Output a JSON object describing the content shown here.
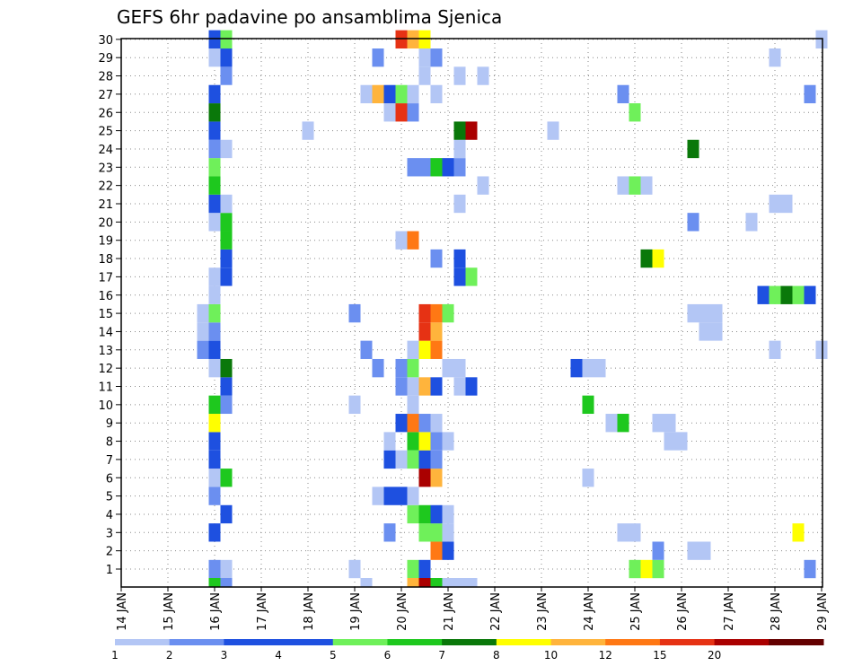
{
  "chart_data": {
    "type": "heatmap",
    "title": "GEFS 6hr padavine po ansamblima Sjenica",
    "y_categories": [
      "1",
      "2",
      "3",
      "4",
      "5",
      "6",
      "7",
      "8",
      "9",
      "10",
      "11",
      "12",
      "13",
      "14",
      "15",
      "16",
      "17",
      "18",
      "19",
      "20",
      "21",
      "22",
      "23",
      "24",
      "25",
      "26",
      "27",
      "28",
      "29",
      "30"
    ],
    "x_tick_labels": [
      "14 JAN",
      "15 JAN",
      "16 JAN",
      "17 JAN",
      "18 JAN",
      "19 JAN",
      "20 JAN",
      "21 JAN",
      "22 JAN",
      "23 JAN",
      "24 JAN",
      "25 JAN",
      "26 JAN",
      "27 JAN",
      "28 JAN",
      "29 JAN"
    ],
    "time_step_hours": 6,
    "legend": {
      "labels": [
        "1",
        "2",
        "3",
        "4",
        "5",
        "6",
        "7",
        "8",
        "10",
        "12",
        "15",
        "20"
      ],
      "colors": [
        "#b3c6f5",
        "#6b8ff0",
        "#1e50e0",
        "#1e50e0",
        "#6ff05a",
        "#1ec81e",
        "#0a780a",
        "#ffff00",
        "#ffb43c",
        "#ff7814",
        "#e63214",
        "#aa0000",
        "#640000"
      ]
    },
    "grid": true,
    "cells": [
      {
        "member": 1,
        "step": 8,
        "mm": 2
      },
      {
        "member": 1,
        "step": 9,
        "mm": 1
      },
      {
        "member": 1,
        "step": 20,
        "mm": 1
      },
      {
        "member": 1,
        "step": 25,
        "mm": 5
      },
      {
        "member": 1,
        "step": 26,
        "mm": 3
      },
      {
        "member": 1,
        "step": 44,
        "mm": 5
      },
      {
        "member": 1,
        "step": 45,
        "mm": 8
      },
      {
        "member": 1,
        "step": 46,
        "mm": 5
      },
      {
        "member": 1,
        "step": 59,
        "mm": 2
      },
      {
        "member": 2,
        "step": 27,
        "mm": 12
      },
      {
        "member": 2,
        "step": 28,
        "mm": 3
      },
      {
        "member": 2,
        "step": 46,
        "mm": 2
      },
      {
        "member": 2,
        "step": 49,
        "mm": 1
      },
      {
        "member": 2,
        "step": 50,
        "mm": 1
      },
      {
        "member": 3,
        "step": 8,
        "mm": 3
      },
      {
        "member": 3,
        "step": 23,
        "mm": 2
      },
      {
        "member": 3,
        "step": 26,
        "mm": 5
      },
      {
        "member": 3,
        "step": 27,
        "mm": 5
      },
      {
        "member": 3,
        "step": 28,
        "mm": 1
      },
      {
        "member": 3,
        "step": 43,
        "mm": 1
      },
      {
        "member": 3,
        "step": 44,
        "mm": 1
      },
      {
        "member": 3,
        "step": 58,
        "mm": 8
      },
      {
        "member": 4,
        "step": 9,
        "mm": 3
      },
      {
        "member": 4,
        "step": 25,
        "mm": 5
      },
      {
        "member": 4,
        "step": 26,
        "mm": 6
      },
      {
        "member": 4,
        "step": 27,
        "mm": 3
      },
      {
        "member": 4,
        "step": 28,
        "mm": 1
      },
      {
        "member": 5,
        "step": 8,
        "mm": 2
      },
      {
        "member": 5,
        "step": 22,
        "mm": 1
      },
      {
        "member": 5,
        "step": 23,
        "mm": 3
      },
      {
        "member": 5,
        "step": 24,
        "mm": 3
      },
      {
        "member": 5,
        "step": 25,
        "mm": 1
      },
      {
        "member": 6,
        "step": 8,
        "mm": 1
      },
      {
        "member": 6,
        "step": 9,
        "mm": 6
      },
      {
        "member": 6,
        "step": 26,
        "mm": 20
      },
      {
        "member": 6,
        "step": 27,
        "mm": 10
      },
      {
        "member": 6,
        "step": 40,
        "mm": 1
      },
      {
        "member": 7,
        "step": 8,
        "mm": 3
      },
      {
        "member": 7,
        "step": 23,
        "mm": 3
      },
      {
        "member": 7,
        "step": 24,
        "mm": 1
      },
      {
        "member": 7,
        "step": 25,
        "mm": 5
      },
      {
        "member": 7,
        "step": 26,
        "mm": 3
      },
      {
        "member": 7,
        "step": 27,
        "mm": 2
      },
      {
        "member": 8,
        "step": 8,
        "mm": 3
      },
      {
        "member": 8,
        "step": 23,
        "mm": 1
      },
      {
        "member": 8,
        "step": 25,
        "mm": 6
      },
      {
        "member": 8,
        "step": 26,
        "mm": 8
      },
      {
        "member": 8,
        "step": 27,
        "mm": 2
      },
      {
        "member": 8,
        "step": 28,
        "mm": 1
      },
      {
        "member": 8,
        "step": 47,
        "mm": 1
      },
      {
        "member": 8,
        "step": 48,
        "mm": 1
      },
      {
        "member": 9,
        "step": 8,
        "mm": 8
      },
      {
        "member": 9,
        "step": 24,
        "mm": 3
      },
      {
        "member": 9,
        "step": 25,
        "mm": 12
      },
      {
        "member": 9,
        "step": 26,
        "mm": 2
      },
      {
        "member": 9,
        "step": 27,
        "mm": 1
      },
      {
        "member": 9,
        "step": 42,
        "mm": 1
      },
      {
        "member": 9,
        "step": 43,
        "mm": 6
      },
      {
        "member": 9,
        "step": 46,
        "mm": 1
      },
      {
        "member": 9,
        "step": 47,
        "mm": 1
      },
      {
        "member": 10,
        "step": 8,
        "mm": 6
      },
      {
        "member": 10,
        "step": 9,
        "mm": 2
      },
      {
        "member": 10,
        "step": 20,
        "mm": 1
      },
      {
        "member": 10,
        "step": 25,
        "mm": 1
      },
      {
        "member": 10,
        "step": 40,
        "mm": 6
      },
      {
        "member": 11,
        "step": 9,
        "mm": 3
      },
      {
        "member": 11,
        "step": 24,
        "mm": 2
      },
      {
        "member": 11,
        "step": 25,
        "mm": 1
      },
      {
        "member": 11,
        "step": 26,
        "mm": 10
      },
      {
        "member": 11,
        "step": 27,
        "mm": 3
      },
      {
        "member": 11,
        "step": 29,
        "mm": 1
      },
      {
        "member": 11,
        "step": 30,
        "mm": 3
      },
      {
        "member": 12,
        "step": 8,
        "mm": 1
      },
      {
        "member": 12,
        "step": 9,
        "mm": 7
      },
      {
        "member": 12,
        "step": 22,
        "mm": 2
      },
      {
        "member": 12,
        "step": 24,
        "mm": 2
      },
      {
        "member": 12,
        "step": 25,
        "mm": 5
      },
      {
        "member": 12,
        "step": 28,
        "mm": 1
      },
      {
        "member": 12,
        "step": 29,
        "mm": 1
      },
      {
        "member": 12,
        "step": 39,
        "mm": 3
      },
      {
        "member": 12,
        "step": 40,
        "mm": 1
      },
      {
        "member": 12,
        "step": 41,
        "mm": 1
      },
      {
        "member": 13,
        "step": 7,
        "mm": 2
      },
      {
        "member": 13,
        "step": 8,
        "mm": 3
      },
      {
        "member": 13,
        "step": 21,
        "mm": 2
      },
      {
        "member": 13,
        "step": 25,
        "mm": 1
      },
      {
        "member": 13,
        "step": 26,
        "mm": 8
      },
      {
        "member": 13,
        "step": 27,
        "mm": 12
      },
      {
        "member": 13,
        "step": 56,
        "mm": 1
      },
      {
        "member": 13,
        "step": 60,
        "mm": 1
      },
      {
        "member": 14,
        "step": 7,
        "mm": 1
      },
      {
        "member": 14,
        "step": 8,
        "mm": 2
      },
      {
        "member": 14,
        "step": 26,
        "mm": 15
      },
      {
        "member": 14,
        "step": 27,
        "mm": 10
      },
      {
        "member": 14,
        "step": 50,
        "mm": 1
      },
      {
        "member": 14,
        "step": 51,
        "mm": 1
      },
      {
        "member": 15,
        "step": 7,
        "mm": 1
      },
      {
        "member": 15,
        "step": 8,
        "mm": 5
      },
      {
        "member": 15,
        "step": 20,
        "mm": 2
      },
      {
        "member": 15,
        "step": 26,
        "mm": 15
      },
      {
        "member": 15,
        "step": 27,
        "mm": 12
      },
      {
        "member": 15,
        "step": 28,
        "mm": 5
      },
      {
        "member": 15,
        "step": 49,
        "mm": 1
      },
      {
        "member": 15,
        "step": 50,
        "mm": 1
      },
      {
        "member": 15,
        "step": 51,
        "mm": 1
      },
      {
        "member": 16,
        "step": 8,
        "mm": 1
      },
      {
        "member": 16,
        "step": 55,
        "mm": 3
      },
      {
        "member": 16,
        "step": 56,
        "mm": 5
      },
      {
        "member": 16,
        "step": 57,
        "mm": 7
      },
      {
        "member": 16,
        "step": 58,
        "mm": 5
      },
      {
        "member": 16,
        "step": 59,
        "mm": 3
      },
      {
        "member": 17,
        "step": 8,
        "mm": 1
      },
      {
        "member": 17,
        "step": 9,
        "mm": 3
      },
      {
        "member": 17,
        "step": 29,
        "mm": 3
      },
      {
        "member": 17,
        "step": 30,
        "mm": 5
      },
      {
        "member": 18,
        "step": 9,
        "mm": 3
      },
      {
        "member": 18,
        "step": 27,
        "mm": 2
      },
      {
        "member": 18,
        "step": 29,
        "mm": 3
      },
      {
        "member": 18,
        "step": 45,
        "mm": 7
      },
      {
        "member": 18,
        "step": 46,
        "mm": 8
      },
      {
        "member": 19,
        "step": 9,
        "mm": 6
      },
      {
        "member": 19,
        "step": 24,
        "mm": 1
      },
      {
        "member": 19,
        "step": 25,
        "mm": 12
      },
      {
        "member": 20,
        "step": 8,
        "mm": 1
      },
      {
        "member": 20,
        "step": 9,
        "mm": 6
      },
      {
        "member": 20,
        "step": 49,
        "mm": 2
      },
      {
        "member": 20,
        "step": 54,
        "mm": 1
      },
      {
        "member": 21,
        "step": 8,
        "mm": 3
      },
      {
        "member": 21,
        "step": 9,
        "mm": 1
      },
      {
        "member": 21,
        "step": 29,
        "mm": 1
      },
      {
        "member": 21,
        "step": 56,
        "mm": 1
      },
      {
        "member": 21,
        "step": 57,
        "mm": 1
      },
      {
        "member": 22,
        "step": 8,
        "mm": 6
      },
      {
        "member": 22,
        "step": 31,
        "mm": 1
      },
      {
        "member": 22,
        "step": 43,
        "mm": 1
      },
      {
        "member": 22,
        "step": 44,
        "mm": 5
      },
      {
        "member": 22,
        "step": 45,
        "mm": 1
      },
      {
        "member": 23,
        "step": 8,
        "mm": 5
      },
      {
        "member": 23,
        "step": 25,
        "mm": 2
      },
      {
        "member": 23,
        "step": 26,
        "mm": 2
      },
      {
        "member": 23,
        "step": 27,
        "mm": 6
      },
      {
        "member": 23,
        "step": 28,
        "mm": 3
      },
      {
        "member": 23,
        "step": 29,
        "mm": 2
      },
      {
        "member": 24,
        "step": 8,
        "mm": 2
      },
      {
        "member": 24,
        "step": 9,
        "mm": 1
      },
      {
        "member": 24,
        "step": 29,
        "mm": 1
      },
      {
        "member": 24,
        "step": 49,
        "mm": 7
      },
      {
        "member": 25,
        "step": 8,
        "mm": 3
      },
      {
        "member": 25,
        "step": 16,
        "mm": 1
      },
      {
        "member": 25,
        "step": 29,
        "mm": 7
      },
      {
        "member": 25,
        "step": 30,
        "mm": 20
      },
      {
        "member": 25,
        "step": 37,
        "mm": 1
      },
      {
        "member": 26,
        "step": 8,
        "mm": 7
      },
      {
        "member": 26,
        "step": 23,
        "mm": 1
      },
      {
        "member": 26,
        "step": 24,
        "mm": 15
      },
      {
        "member": 26,
        "step": 25,
        "mm": 2
      },
      {
        "member": 26,
        "step": 44,
        "mm": 5
      },
      {
        "member": 27,
        "step": 8,
        "mm": 3
      },
      {
        "member": 27,
        "step": 21,
        "mm": 1
      },
      {
        "member": 27,
        "step": 22,
        "mm": 10
      },
      {
        "member": 27,
        "step": 23,
        "mm": 3
      },
      {
        "member": 27,
        "step": 24,
        "mm": 5
      },
      {
        "member": 27,
        "step": 25,
        "mm": 1
      },
      {
        "member": 27,
        "step": 27,
        "mm": 1
      },
      {
        "member": 27,
        "step": 43,
        "mm": 2
      },
      {
        "member": 27,
        "step": 59,
        "mm": 2
      },
      {
        "member": 28,
        "step": 9,
        "mm": 2
      },
      {
        "member": 28,
        "step": 26,
        "mm": 1
      },
      {
        "member": 28,
        "step": 29,
        "mm": 1
      },
      {
        "member": 28,
        "step": 31,
        "mm": 1
      },
      {
        "member": 29,
        "step": 8,
        "mm": 1
      },
      {
        "member": 29,
        "step": 9,
        "mm": 3
      },
      {
        "member": 29,
        "step": 22,
        "mm": 2
      },
      {
        "member": 29,
        "step": 26,
        "mm": 1
      },
      {
        "member": 29,
        "step": 27,
        "mm": 2
      },
      {
        "member": 29,
        "step": 56,
        "mm": 1
      },
      {
        "member": 30,
        "step": 8,
        "mm": 3
      },
      {
        "member": 30,
        "step": 9,
        "mm": 5
      },
      {
        "member": 30,
        "step": 24,
        "mm": 15
      },
      {
        "member": 30,
        "step": 25,
        "mm": 10
      },
      {
        "member": 30,
        "step": 26,
        "mm": 8
      },
      {
        "member": 30,
        "step": 60,
        "mm": 1
      },
      {
        "member": 0,
        "step": 8,
        "mm": 6
      },
      {
        "member": 0,
        "step": 9,
        "mm": 2
      },
      {
        "member": 0,
        "step": 21,
        "mm": 1
      },
      {
        "member": 0,
        "step": 25,
        "mm": 10
      },
      {
        "member": 0,
        "step": 26,
        "mm": 20
      },
      {
        "member": 0,
        "step": 27,
        "mm": 6
      },
      {
        "member": 0,
        "step": 28,
        "mm": 1
      },
      {
        "member": 0,
        "step": 29,
        "mm": 1
      },
      {
        "member": 0,
        "step": 30,
        "mm": 1
      }
    ]
  }
}
